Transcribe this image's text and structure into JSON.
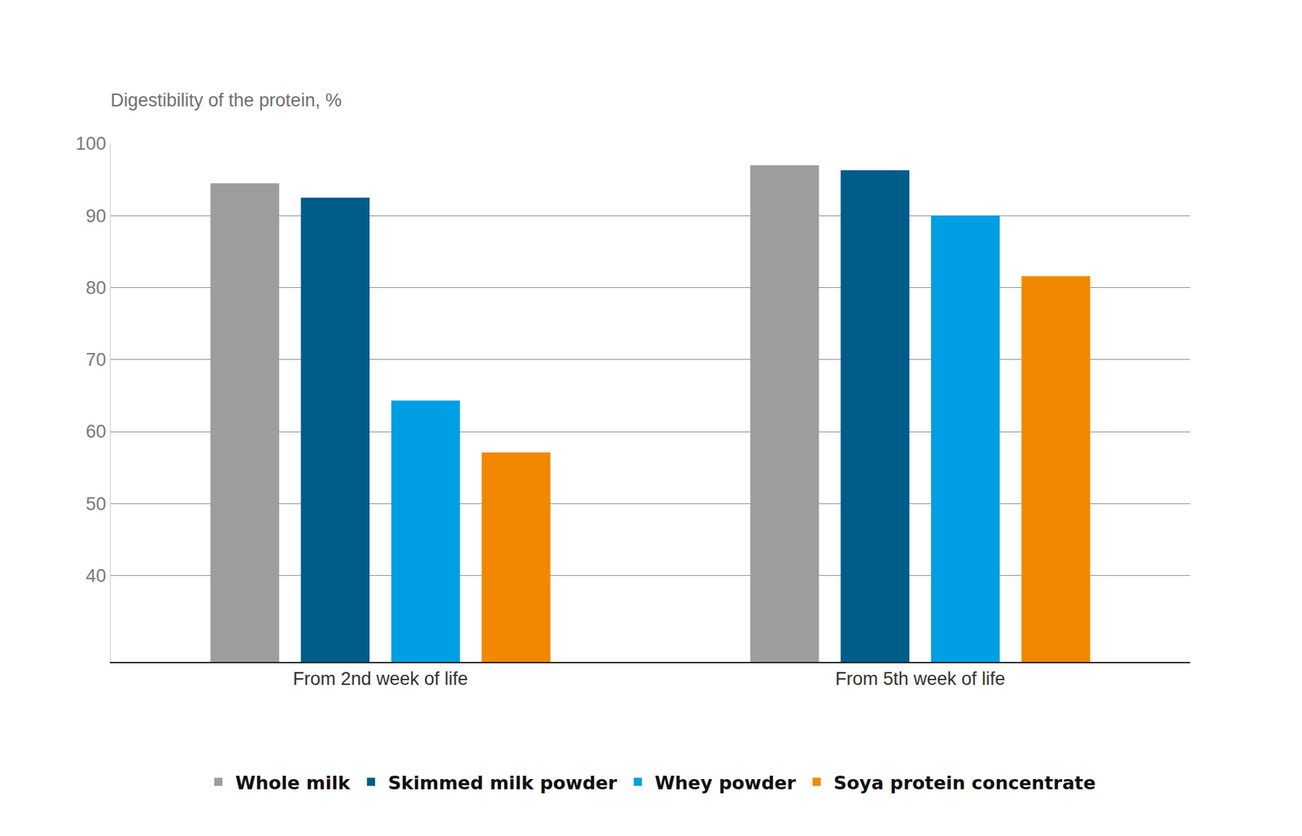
{
  "chart_data": {
    "type": "bar",
    "y_label": "Digestibility of the protein, %",
    "categories": [
      "From 2nd week of life",
      "From 5th week of life"
    ],
    "series": [
      {
        "name": "Whole milk",
        "color": "#9d9d9c",
        "values": [
          94.5,
          97.0
        ]
      },
      {
        "name": "Skimmed milk powder",
        "color": "#005c8a",
        "values": [
          92.5,
          96.3
        ]
      },
      {
        "name": "Whey powder",
        "color": "#009fe3",
        "values": [
          64.3,
          90.0
        ]
      },
      {
        "name": "Soya protein concentrate",
        "color": "#f08800",
        "values": [
          57.1,
          81.6
        ]
      }
    ],
    "ylim": [
      28,
      100
    ],
    "yticks": [
      40,
      50,
      60,
      70,
      80,
      90,
      100
    ],
    "grid": true,
    "legend": "bottom"
  }
}
